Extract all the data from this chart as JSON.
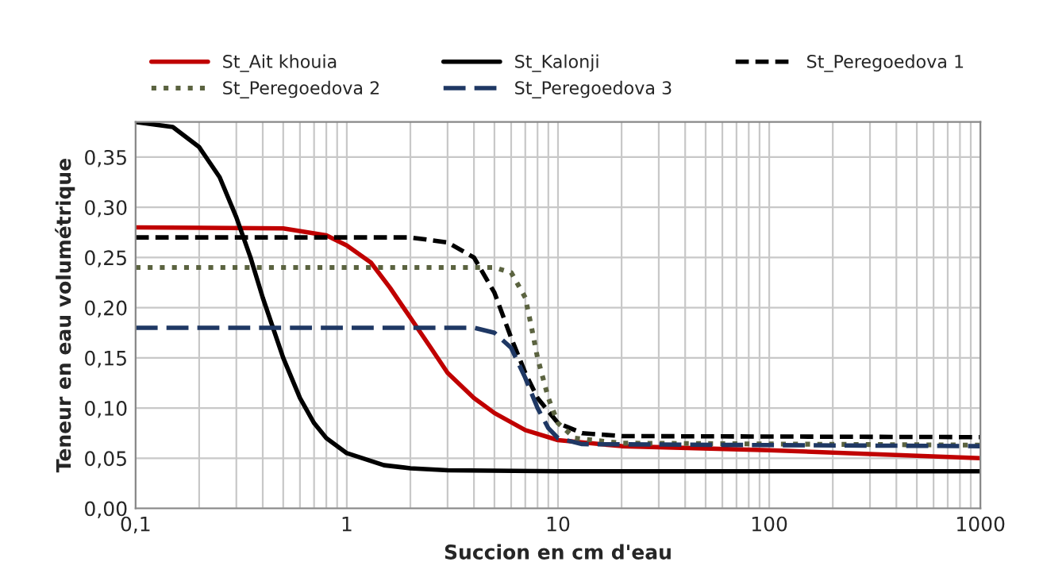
{
  "chart_data": {
    "type": "line",
    "xlabel": "Succion en cm d'eau",
    "ylabel": "Teneur en eau volumétrique",
    "log": "x",
    "grid": true,
    "legend": "top",
    "marker": "none",
    "xlim": [
      0.1,
      1000
    ],
    "xticks": [
      {
        "value": 0.1,
        "label": "0,1"
      },
      1,
      10,
      100,
      1000
    ],
    "ylim": [
      0,
      0.385
    ],
    "yticks": [
      {
        "value": 0,
        "label": "0,00"
      },
      {
        "value": 0.05,
        "label": "0,05"
      },
      {
        "value": 0.1,
        "label": "0,10"
      },
      {
        "value": 0.15,
        "label": "0,15"
      },
      {
        "value": 0.2,
        "label": "0,20"
      },
      {
        "value": 0.25,
        "label": "0,25"
      },
      {
        "value": 0.3,
        "label": "0,30"
      },
      {
        "value": 0.35,
        "label": "0,35"
      }
    ],
    "series": [
      {
        "name": "St_Ait khouia",
        "color": "#c00000",
        "line_style": "solid",
        "x": [
          0.1,
          0.5,
          0.8,
          1,
          1.3,
          1.6,
          2,
          2.5,
          3,
          4,
          5,
          7,
          10,
          20,
          100,
          1000
        ],
        "values": [
          0.28,
          0.279,
          0.272,
          0.262,
          0.245,
          0.22,
          0.19,
          0.16,
          0.135,
          0.11,
          0.095,
          0.078,
          0.068,
          0.062,
          0.058,
          0.05
        ]
      },
      {
        "name": "St_Kalonji",
        "color": "#000000",
        "line_style": "solid",
        "x": [
          0.1,
          0.15,
          0.2,
          0.25,
          0.3,
          0.35,
          0.4,
          0.5,
          0.6,
          0.7,
          0.8,
          1,
          1.5,
          2,
          3,
          10,
          1000
        ],
        "values": [
          0.385,
          0.38,
          0.36,
          0.33,
          0.29,
          0.25,
          0.21,
          0.15,
          0.11,
          0.085,
          0.07,
          0.055,
          0.043,
          0.04,
          0.038,
          0.037,
          0.037
        ]
      },
      {
        "name": "St_Peregoedova 1",
        "color": "#000000",
        "line_style": "dashed",
        "x": [
          0.1,
          2,
          3,
          4,
          5,
          6,
          7,
          8,
          10,
          13,
          20,
          1000
        ],
        "values": [
          0.27,
          0.27,
          0.265,
          0.25,
          0.215,
          0.17,
          0.135,
          0.11,
          0.085,
          0.075,
          0.072,
          0.071
        ]
      },
      {
        "name": "St_Peregoedova 2",
        "color": "#5b6340",
        "line_style": "dotted",
        "x": [
          0.1,
          5,
          6,
          7,
          7.5,
          8,
          9,
          10,
          12,
          20,
          1000
        ],
        "values": [
          0.24,
          0.24,
          0.235,
          0.21,
          0.18,
          0.15,
          0.11,
          0.085,
          0.07,
          0.065,
          0.063
        ]
      },
      {
        "name": "St_Peregoedova 3",
        "color": "#1f3864",
        "line_style": "longdash",
        "x": [
          0.1,
          4,
          5,
          6,
          7,
          8,
          9,
          10,
          13,
          1000
        ],
        "values": [
          0.18,
          0.18,
          0.175,
          0.16,
          0.13,
          0.1,
          0.08,
          0.07,
          0.064,
          0.062
        ]
      }
    ]
  }
}
